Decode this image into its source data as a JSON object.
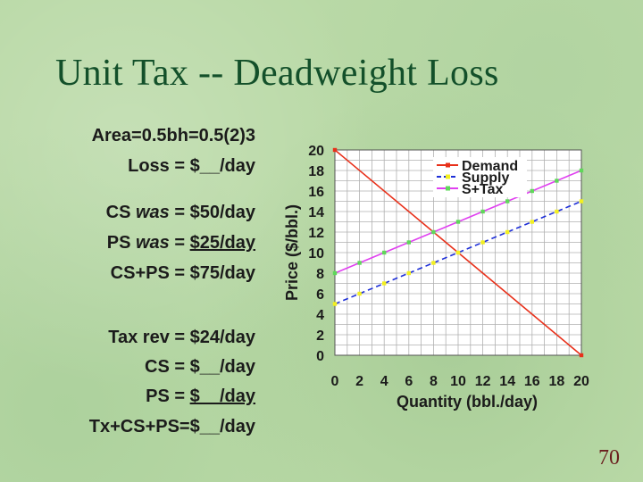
{
  "title": "Unit Tax -- Deadweight Loss",
  "slide_number": "70",
  "left_text": {
    "area": "Area=0.5bh=0.5(2)3",
    "loss": "Loss = $__/day",
    "cs_was_label": "CS",
    "cs_was_word": "was",
    "cs_was_value": "= $50/day",
    "ps_was_label": "PS",
    "ps_was_word": "was",
    "ps_was_eq": "=",
    "ps_was_value": "$25/day",
    "cs_ps": "CS+PS = $75/day",
    "tax_rev": "Tax rev = $24/day",
    "cs": "CS = $__/day",
    "ps_eq": "PS =",
    "ps_value": "$__/day",
    "total": "Tx+CS+PS=$__/day"
  },
  "colors": {
    "demand": "#e8301a",
    "supply": "#1e2fd8",
    "tax": "#e040f0",
    "marker_yellow": "#f3f020",
    "marker_green": "#5fd85a",
    "grid": "#b0b0b0"
  },
  "chart_data": {
    "type": "line",
    "xlabel": "Quantity (bbl./day)",
    "ylabel": "Price ($/bbl.)",
    "xlim": [
      0,
      20
    ],
    "ylim": [
      0,
      20
    ],
    "xticks": [
      0,
      2,
      4,
      6,
      8,
      10,
      12,
      14,
      16,
      18,
      20
    ],
    "yticks": [
      0,
      2,
      4,
      6,
      8,
      10,
      12,
      14,
      16,
      18,
      20
    ],
    "grid": true,
    "legend_position": "top-right",
    "series": [
      {
        "name": "Demand",
        "x": [
          0,
          20
        ],
        "y": [
          20,
          0
        ]
      },
      {
        "name": "Supply",
        "x": [
          0,
          2,
          4,
          6,
          8,
          10,
          12,
          14,
          16,
          18,
          20
        ],
        "y": [
          5,
          6,
          7,
          8,
          9,
          10,
          11,
          12,
          13,
          14,
          15
        ]
      },
      {
        "name": "S+Tax",
        "x": [
          0,
          2,
          4,
          6,
          8,
          10,
          12,
          14,
          16,
          18,
          20
        ],
        "y": [
          8,
          9,
          10,
          11,
          12,
          13,
          14,
          15,
          16,
          17,
          18
        ]
      }
    ]
  }
}
